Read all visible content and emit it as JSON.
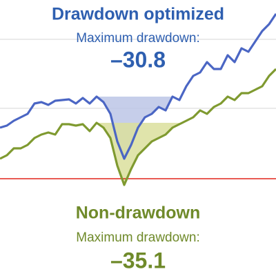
{
  "chart_data": {
    "type": "line",
    "xlim": [
      0,
      400
    ],
    "ylim": [
      0,
      100
    ],
    "yticks": [
      85.75,
      60.75
    ],
    "grid": true,
    "reference_line": {
      "value": 35.25,
      "color": "#e2231a"
    },
    "x": [
      0,
      10,
      20,
      30,
      40,
      50,
      60,
      70,
      80,
      90,
      100,
      110,
      120,
      130,
      140,
      150,
      160,
      170,
      180,
      190,
      200,
      210,
      220,
      230,
      240,
      250,
      260,
      270,
      280,
      290,
      300,
      310,
      320,
      330,
      340,
      350,
      360,
      370,
      380,
      390,
      400
    ],
    "series": [
      {
        "name": "Drawdown optimized",
        "color": "#4b66c4",
        "fill": "#bcc6e6",
        "text_color": "#2e5fb0",
        "annotation": "Maximum drawdown:",
        "drawdown": "–30.8",
        "values": [
          53.75,
          54.5,
          56.25,
          57.5,
          58.75,
          62.5,
          63,
          62,
          63.5,
          63.75,
          64,
          62.5,
          64.5,
          62.5,
          65,
          63,
          58.75,
          48.75,
          42.5,
          47.5,
          53.75,
          57.5,
          58.75,
          61.25,
          60,
          65,
          63.75,
          68.75,
          72.5,
          73.75,
          77.5,
          75,
          75,
          80,
          77.5,
          82.5,
          81.25,
          85,
          88.75,
          91.25,
          95
        ]
      },
      {
        "name": "Non-drawdown",
        "color": "#7f9a30",
        "fill": "#dadf9c",
        "text_color": "#6f8a2a",
        "annotation": "Maximum drawdown:",
        "drawdown": "–35.1",
        "values": [
          42.5,
          43.75,
          46.25,
          46.25,
          47.5,
          50,
          51.25,
          52,
          51.25,
          55,
          55,
          54.5,
          55,
          52.5,
          55.5,
          53.75,
          50,
          40,
          33,
          38.75,
          43.75,
          46.25,
          48.75,
          50,
          51.25,
          53.75,
          55,
          56.25,
          57.5,
          60,
          58.75,
          61.25,
          62.5,
          65,
          63.75,
          66.25,
          66.25,
          67.5,
          68.75,
          72.5,
          75
        ]
      }
    ]
  }
}
